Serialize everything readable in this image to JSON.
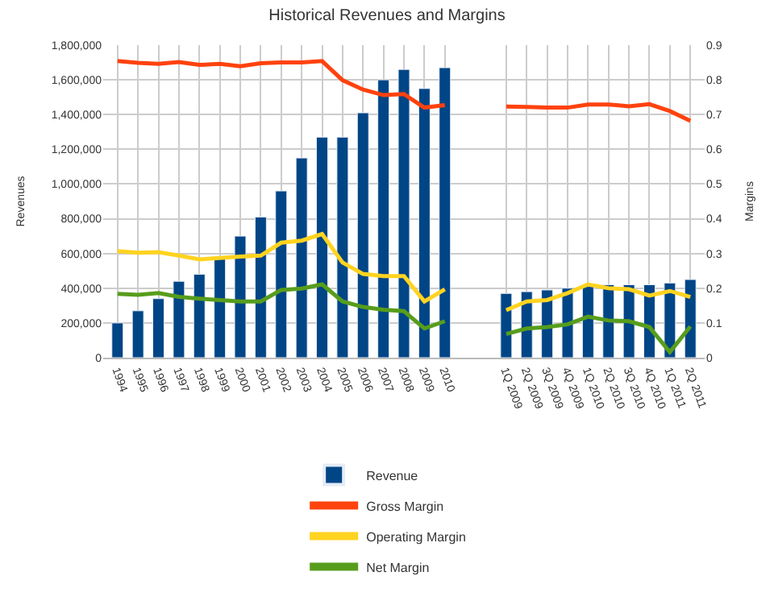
{
  "chart_data": {
    "type": "bar",
    "title": "Historical Revenues and Margins",
    "ylabel": "Revenues",
    "y2label": "Margins",
    "categories": [
      "1994",
      "1995",
      "1996",
      "1997",
      "1998",
      "1999",
      "2000",
      "2001",
      "2002",
      "2003",
      "2004",
      "2005",
      "2006",
      "2007",
      "2008",
      "2009",
      "2010",
      null,
      null,
      "1Q 2009",
      "2Q 2009",
      "3Q 2009",
      "4Q 2009",
      "1Q 2010",
      "2Q 2010",
      "3Q 2010",
      "4Q 2010",
      "1Q 2011",
      "2Q 2011"
    ],
    "series": [
      {
        "name": "Revenue",
        "color": "#004586",
        "values": [
          200000,
          270000,
          340000,
          440000,
          480000,
          570000,
          700000,
          810000,
          960000,
          1150000,
          1270000,
          1270000,
          1410000,
          1600000,
          1660000,
          1550000,
          1670000,
          null,
          null,
          370000,
          380000,
          390000,
          400000,
          410000,
          420000,
          420000,
          420000,
          430000,
          450000
        ]
      },
      {
        "name": "Gross Margin",
        "type": "line",
        "axis": "y2",
        "color": "#ff420e",
        "values": [
          0.854,
          0.849,
          0.846,
          0.851,
          0.843,
          0.846,
          0.839,
          0.848,
          0.85,
          0.85,
          0.854,
          0.799,
          0.772,
          0.756,
          0.759,
          0.72,
          0.727,
          null,
          null,
          0.723,
          0.722,
          0.72,
          0.72,
          0.729,
          0.729,
          0.724,
          0.73,
          0.71,
          0.682
        ]
      },
      {
        "name": "Operating Margin",
        "type": "line",
        "axis": "y2",
        "color": "#ffd320",
        "values": [
          0.307,
          0.302,
          0.304,
          0.294,
          0.283,
          0.287,
          0.291,
          0.294,
          0.331,
          0.337,
          0.356,
          0.274,
          0.241,
          0.235,
          0.235,
          0.162,
          0.197,
          null,
          null,
          0.137,
          0.162,
          0.166,
          0.186,
          0.211,
          0.2,
          0.197,
          0.179,
          0.192,
          0.175
        ]
      },
      {
        "name": "Net Margin",
        "type": "line",
        "axis": "y2",
        "color": "#579d1c",
        "values": [
          0.184,
          0.181,
          0.186,
          0.175,
          0.17,
          0.166,
          0.162,
          0.162,
          0.195,
          0.199,
          0.211,
          0.162,
          0.146,
          0.138,
          0.134,
          0.084,
          0.105,
          null,
          null,
          0.068,
          0.084,
          0.088,
          0.096,
          0.118,
          0.107,
          0.105,
          0.088,
          0.016,
          0.09
        ]
      }
    ],
    "ylim": [
      0,
      1800000
    ],
    "yticks": [
      0,
      {
        "value": 200000,
        "label": "200,000"
      },
      {
        "value": 400000,
        "label": "400,000"
      },
      {
        "value": 600000,
        "label": "600,000"
      },
      {
        "value": 800000,
        "label": "800,000"
      },
      {
        "value": 1000000,
        "label": "1,000,000"
      },
      {
        "value": 1200000,
        "label": "1,200,000"
      },
      {
        "value": 1400000,
        "label": "1,400,000"
      },
      {
        "value": 1600000,
        "label": "1,600,000"
      },
      {
        "value": 1800000,
        "label": "1,800,000"
      }
    ],
    "y2lim": [
      0,
      0.9
    ],
    "y2ticks": [
      0,
      0.1,
      0.2,
      0.3,
      0.4,
      0.5,
      0.6,
      0.7,
      0.8,
      0.9
    ],
    "grid": true,
    "legend": "bottom",
    "marker": "none",
    "line_style": "solid"
  }
}
